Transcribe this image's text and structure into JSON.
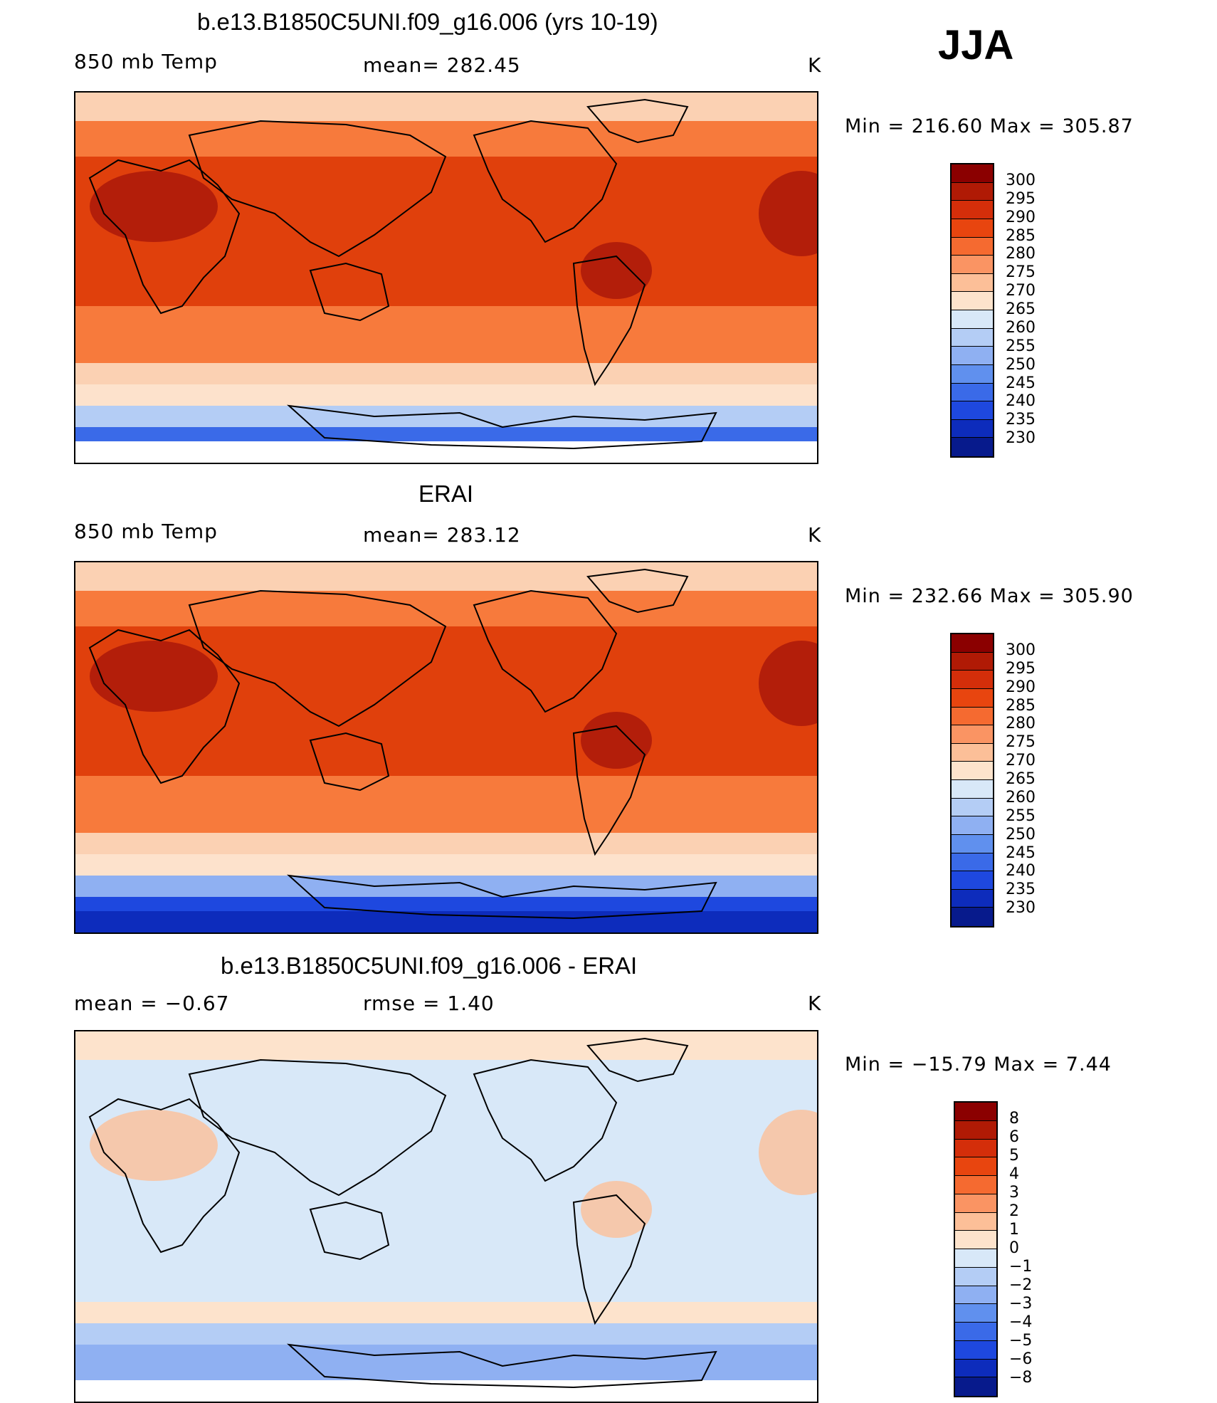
{
  "season": "JJA",
  "panels": [
    {
      "title": "b.e13.B1850C5UNI.f09_g16.006 (yrs 10-19)",
      "left_label": "850 mb Temp",
      "center_label": "mean= 282.45",
      "right_label": "K",
      "minmax": "Min = 216.60 Max = 305.87",
      "colorbar": {
        "colors": [
          "#8b0000",
          "#b01a05",
          "#d42e0a",
          "#e8450f",
          "#f56a30",
          "#fa9463",
          "#fcbf98",
          "#fde3cc",
          "#d8e8f8",
          "#b4cdf5",
          "#8fb0f2",
          "#6090ee",
          "#3a6ae8",
          "#1e48df",
          "#0d2cbc",
          "#071a8c"
        ],
        "labels": [
          "300",
          "295",
          "290",
          "285",
          "280",
          "275",
          "270",
          "265",
          "260",
          "255",
          "250",
          "245",
          "240",
          "235",
          "230"
        ]
      },
      "map_colors": {
        "top": "#fbd1b3",
        "mid_lat": "#f77a3c",
        "tropics": "#e0400c",
        "hot_spot": "#a8150a",
        "south": "#fde2cc",
        "south_cold": "#b4cdf5",
        "antarctic": "#3a6ae8",
        "missing": "#ffffff"
      }
    },
    {
      "title": "ERAI",
      "left_label": "850 mb Temp",
      "center_label": "mean= 283.12",
      "right_label": "K",
      "minmax": "Min = 232.66 Max = 305.90",
      "colorbar": {
        "colors": [
          "#8b0000",
          "#b01a05",
          "#d42e0a",
          "#e8450f",
          "#f56a30",
          "#fa9463",
          "#fcbf98",
          "#fde3cc",
          "#d8e8f8",
          "#b4cdf5",
          "#8fb0f2",
          "#6090ee",
          "#3a6ae8",
          "#1e48df",
          "#0d2cbc",
          "#071a8c"
        ],
        "labels": [
          "300",
          "295",
          "290",
          "285",
          "280",
          "275",
          "270",
          "265",
          "260",
          "255",
          "250",
          "245",
          "240",
          "235",
          "230"
        ]
      },
      "map_colors": {
        "top": "#fbd1b3",
        "mid_lat": "#f77a3c",
        "tropics": "#e0400c",
        "hot_spot": "#a8150a",
        "south": "#fde2cc",
        "south_cold": "#8fb0f2",
        "antarctic": "#1e48df",
        "missing": "#0d2cbc"
      }
    },
    {
      "title": "b.e13.B1850C5UNI.f09_g16.006 - ERAI",
      "left_label": "mean = −0.67",
      "center_label": "rmse = 1.40",
      "right_label": "K",
      "minmax": "Min = −15.79 Max = 7.44",
      "colorbar": {
        "colors": [
          "#8b0000",
          "#b01a05",
          "#d42e0a",
          "#e8450f",
          "#f56a30",
          "#fa9463",
          "#fcbf98",
          "#fde3cc",
          "#d8e8f8",
          "#b4cdf5",
          "#8fb0f2",
          "#6090ee",
          "#3a6ae8",
          "#1e48df",
          "#0d2cbc",
          "#071a8c"
        ],
        "labels": [
          "8",
          "6",
          "5",
          "4",
          "3",
          "2",
          "1",
          "0",
          "−1",
          "−2",
          "−3",
          "−4",
          "−5",
          "−6",
          "−8"
        ]
      },
      "map_colors": {
        "top": "#fde3cc",
        "mid_lat": "#d8e8f8",
        "tropics": "#d8e8f8",
        "hot_spot": "#fcbf98",
        "south": "#b4cdf5",
        "south_cold": "#8fb0f2",
        "antarctic": "#8fb0f2",
        "missing": "#ffffff"
      }
    }
  ]
}
